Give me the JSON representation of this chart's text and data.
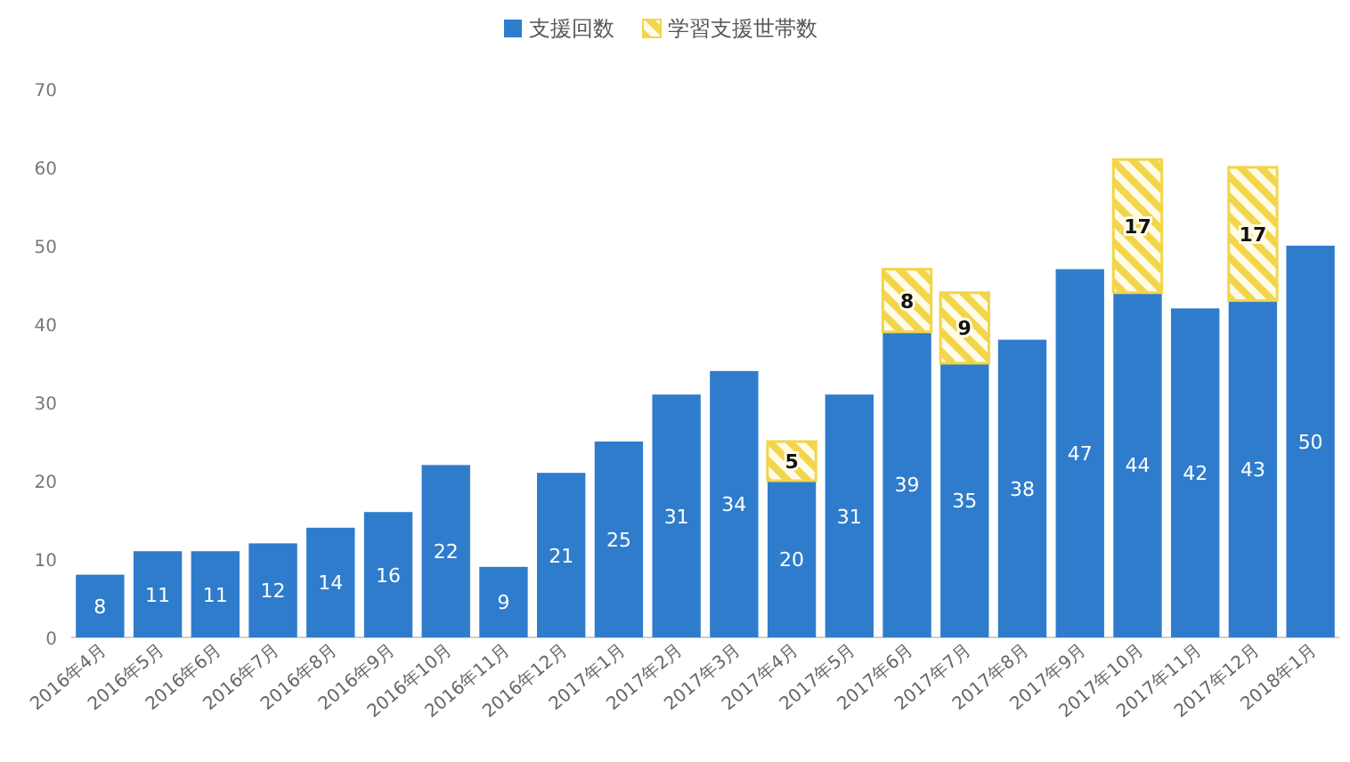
{
  "chart_data": {
    "type": "bar",
    "stacked": true,
    "data_labels": true,
    "legend": "top",
    "categories": [
      "2016年4月",
      "2016年5月",
      "2016年6月",
      "2016年7月",
      "2016年8月",
      "2016年9月",
      "2016年10月",
      "2016年11月",
      "2016年12月",
      "2017年1月",
      "2017年2月",
      "2017年3月",
      "2017年4月",
      "2017年5月",
      "2017年6月",
      "2017年7月",
      "2017年8月",
      "2017年9月",
      "2017年10月",
      "2017年11月",
      "2017年12月",
      "2018年1月"
    ],
    "series": [
      {
        "name": "支援回数",
        "color": "#2f7ccc",
        "values": [
          8,
          11,
          11,
          12,
          14,
          16,
          22,
          9,
          21,
          25,
          31,
          34,
          20,
          31,
          39,
          35,
          38,
          47,
          44,
          42,
          43,
          50
        ]
      },
      {
        "name": "学習支援世帯数",
        "color": "#f2d54a",
        "values": [
          null,
          null,
          null,
          null,
          null,
          null,
          null,
          null,
          null,
          null,
          null,
          null,
          5,
          null,
          8,
          9,
          null,
          null,
          17,
          null,
          17,
          null
        ]
      }
    ],
    "ylim": [
      0,
      70
    ],
    "yticks": [
      0,
      10,
      20,
      30,
      40,
      50,
      60,
      70
    ]
  }
}
